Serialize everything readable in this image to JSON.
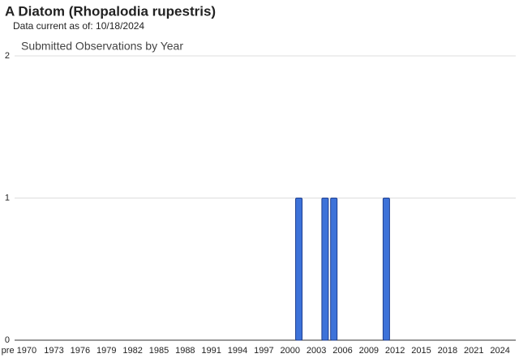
{
  "chart_data": {
    "type": "bar",
    "title": "A Diatom   (Rhopalodia rupestris)",
    "subtitle": "Data current as of: 10/18/2024",
    "chart_title": "Submitted Observations by Year",
    "categories": [
      "pre 1970",
      null,
      null,
      null,
      "1973",
      null,
      null,
      "1976",
      null,
      null,
      "1979",
      null,
      null,
      "1982",
      null,
      null,
      "1985",
      null,
      null,
      "1988",
      null,
      null,
      "1991",
      null,
      null,
      "1994",
      null,
      null,
      "1997",
      null,
      null,
      "2000",
      null,
      null,
      "2003",
      null,
      null,
      "2006",
      null,
      null,
      "2009",
      null,
      null,
      "2012",
      null,
      null,
      "2015",
      null,
      null,
      "2018",
      null,
      null,
      "2021",
      null,
      null,
      "2024"
    ],
    "values": [
      0,
      0,
      0,
      0,
      0,
      0,
      0,
      0,
      0,
      0,
      0,
      0,
      0,
      0,
      0,
      0,
      0,
      0,
      0,
      0,
      0,
      0,
      0,
      0,
      0,
      0,
      0,
      0,
      0,
      0,
      0,
      0,
      1,
      0,
      0,
      1,
      1,
      0,
      0,
      0,
      0,
      0,
      1,
      0,
      0,
      0,
      0,
      0,
      0,
      0,
      0,
      0,
      0,
      0,
      0,
      0
    ],
    "color": "#3d72d9",
    "ylim": [
      0,
      2
    ],
    "yticks": [
      0,
      1,
      2
    ],
    "grid": true
  }
}
